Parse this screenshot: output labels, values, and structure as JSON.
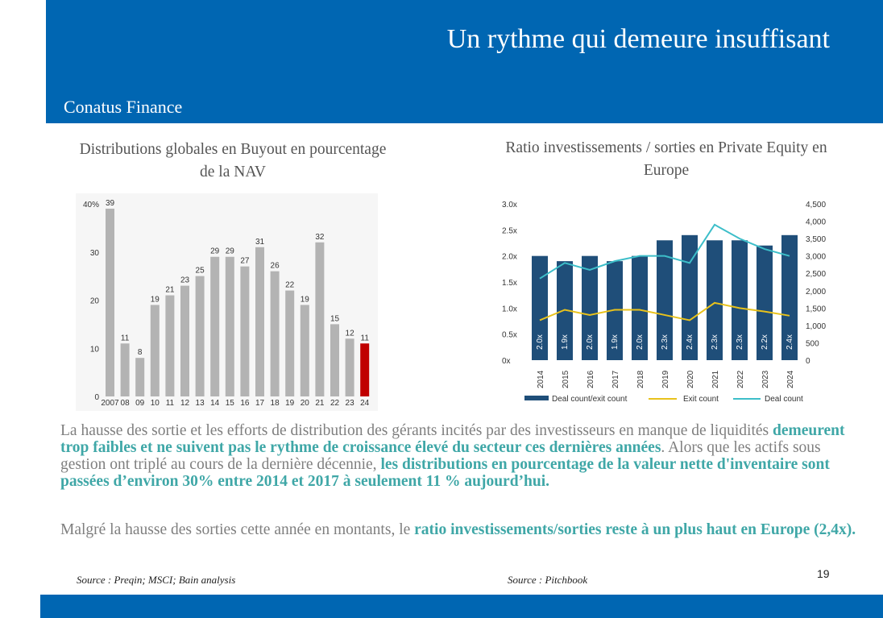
{
  "header": {
    "title": "Un rythme qui demeure insuffisant",
    "company": "Conatus Finance"
  },
  "colors": {
    "brand_blue": "#0066b2",
    "highlight_teal": "#3fa7a7",
    "bar_gray": "#b3b3b3",
    "bar_red": "#c00000",
    "navy_bar": "#1f4e79",
    "exit_line": "#e8c21c",
    "deal_line": "#3dbec9"
  },
  "left_chart": {
    "title": "Distributions globales en Buyout en pourcentage de la NAV"
  },
  "right_chart": {
    "title": "Ratio investissements / sorties en Private Equity en Europe"
  },
  "chart_data": [
    {
      "type": "bar",
      "categories": [
        "2007",
        "08",
        "09",
        "10",
        "11",
        "12",
        "13",
        "14",
        "15",
        "16",
        "17",
        "18",
        "19",
        "20",
        "21",
        "22",
        "23",
        "24"
      ],
      "values": [
        39,
        11,
        8,
        19,
        21,
        23,
        25,
        29,
        29,
        27,
        31,
        26,
        22,
        19,
        32,
        15,
        12,
        11
      ],
      "data_labels": [
        "39",
        "11",
        "8",
        "19",
        "21",
        "23",
        "25",
        "29",
        "29",
        "27",
        "31",
        "26",
        "22",
        "19",
        "32",
        "15",
        "12",
        "11"
      ],
      "highlight_index": 17,
      "ylim": [
        0,
        40
      ],
      "yticks": [
        "0",
        "10",
        "20",
        "30",
        "40%"
      ],
      "grid": false
    },
    {
      "type": "bar",
      "categories": [
        "2014",
        "2015",
        "2016",
        "2017",
        "2018",
        "2019",
        "2020",
        "2021",
        "2022",
        "2023",
        "2024"
      ],
      "series": [
        {
          "name": "Deal count/exit count",
          "axis": "left",
          "type": "bar",
          "values": [
            2.0,
            1.9,
            2.0,
            1.9,
            2.0,
            2.3,
            2.4,
            2.3,
            2.3,
            2.2,
            2.4
          ],
          "labels": [
            "2.0x",
            "1.9x",
            "2.0x",
            "1.9x",
            "2.0x",
            "2.3x",
            "2.4x",
            "2.3x",
            "2.3x",
            "2.2x",
            "2.4x"
          ]
        },
        {
          "name": "Exit count",
          "axis": "right",
          "type": "line",
          "values": [
            1150,
            1450,
            1300,
            1450,
            1450,
            1300,
            1150,
            1650,
            1500,
            1400,
            1280
          ]
        },
        {
          "name": "Deal count",
          "axis": "right",
          "type": "line",
          "values": [
            2350,
            2800,
            2600,
            2850,
            3000,
            3000,
            2800,
            3900,
            3500,
            3200,
            3000
          ]
        }
      ],
      "left_ylim": [
        0,
        3.0
      ],
      "left_yticks": [
        "0x",
        "0.5x",
        "1.0x",
        "1.5x",
        "2.0x",
        "2.5x",
        "3.0x"
      ],
      "right_ylim": [
        0,
        4500
      ],
      "right_yticks": [
        "0",
        "500",
        "1,000",
        "1,500",
        "2,000",
        "2,500",
        "3,000",
        "3,500",
        "4,000",
        "4,500"
      ],
      "legend_position": "bottom",
      "grid": false
    }
  ],
  "body": {
    "para1": {
      "t1": "La hausse des sortie et les efforts de distribution des gérants incités par des investisseurs en manque de liquidités ",
      "h1": "demeurent trop faibles et ne suivent pas le rythme de croissance élevé du secteur ces dernières années",
      "t2": ". Alors que les actifs sous gestion ont triplé au cours de la dernière décennie, ",
      "h2": "les distributions en pourcentage de la valeur nette d'inventaire sont passées d’environ 30% entre 2014 et 2017 à seulement 11 % aujourd’hui."
    },
    "para2": {
      "t1": "Malgré la hausse des sorties cette année en montants, le ",
      "h1": "ratio investissements/sorties reste à un plus haut en Europe (2,4x)."
    }
  },
  "sources": {
    "left": "Source : Preqin; MSCI; Bain analysis",
    "right": "Source : Pitchbook"
  },
  "page_number": "19"
}
